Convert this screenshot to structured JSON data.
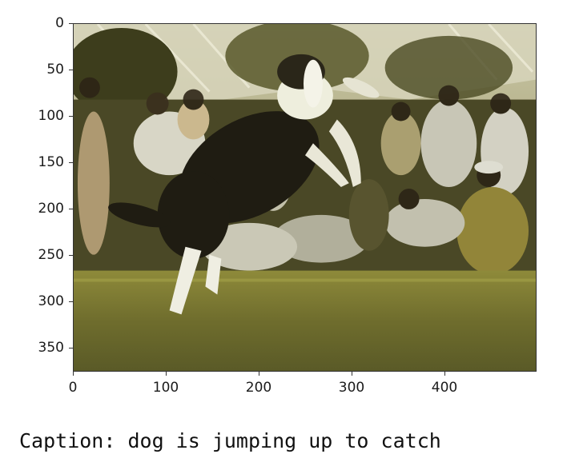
{
  "figure": {
    "image_description_icon": "dog-jumping-photo",
    "y_ticks": [
      "0",
      "50",
      "100",
      "150",
      "200",
      "250",
      "300",
      "350"
    ],
    "x_ticks": [
      "0",
      "100",
      "200",
      "300",
      "400"
    ]
  },
  "caption": {
    "text": "Caption: dog is jumping up to catch"
  }
}
